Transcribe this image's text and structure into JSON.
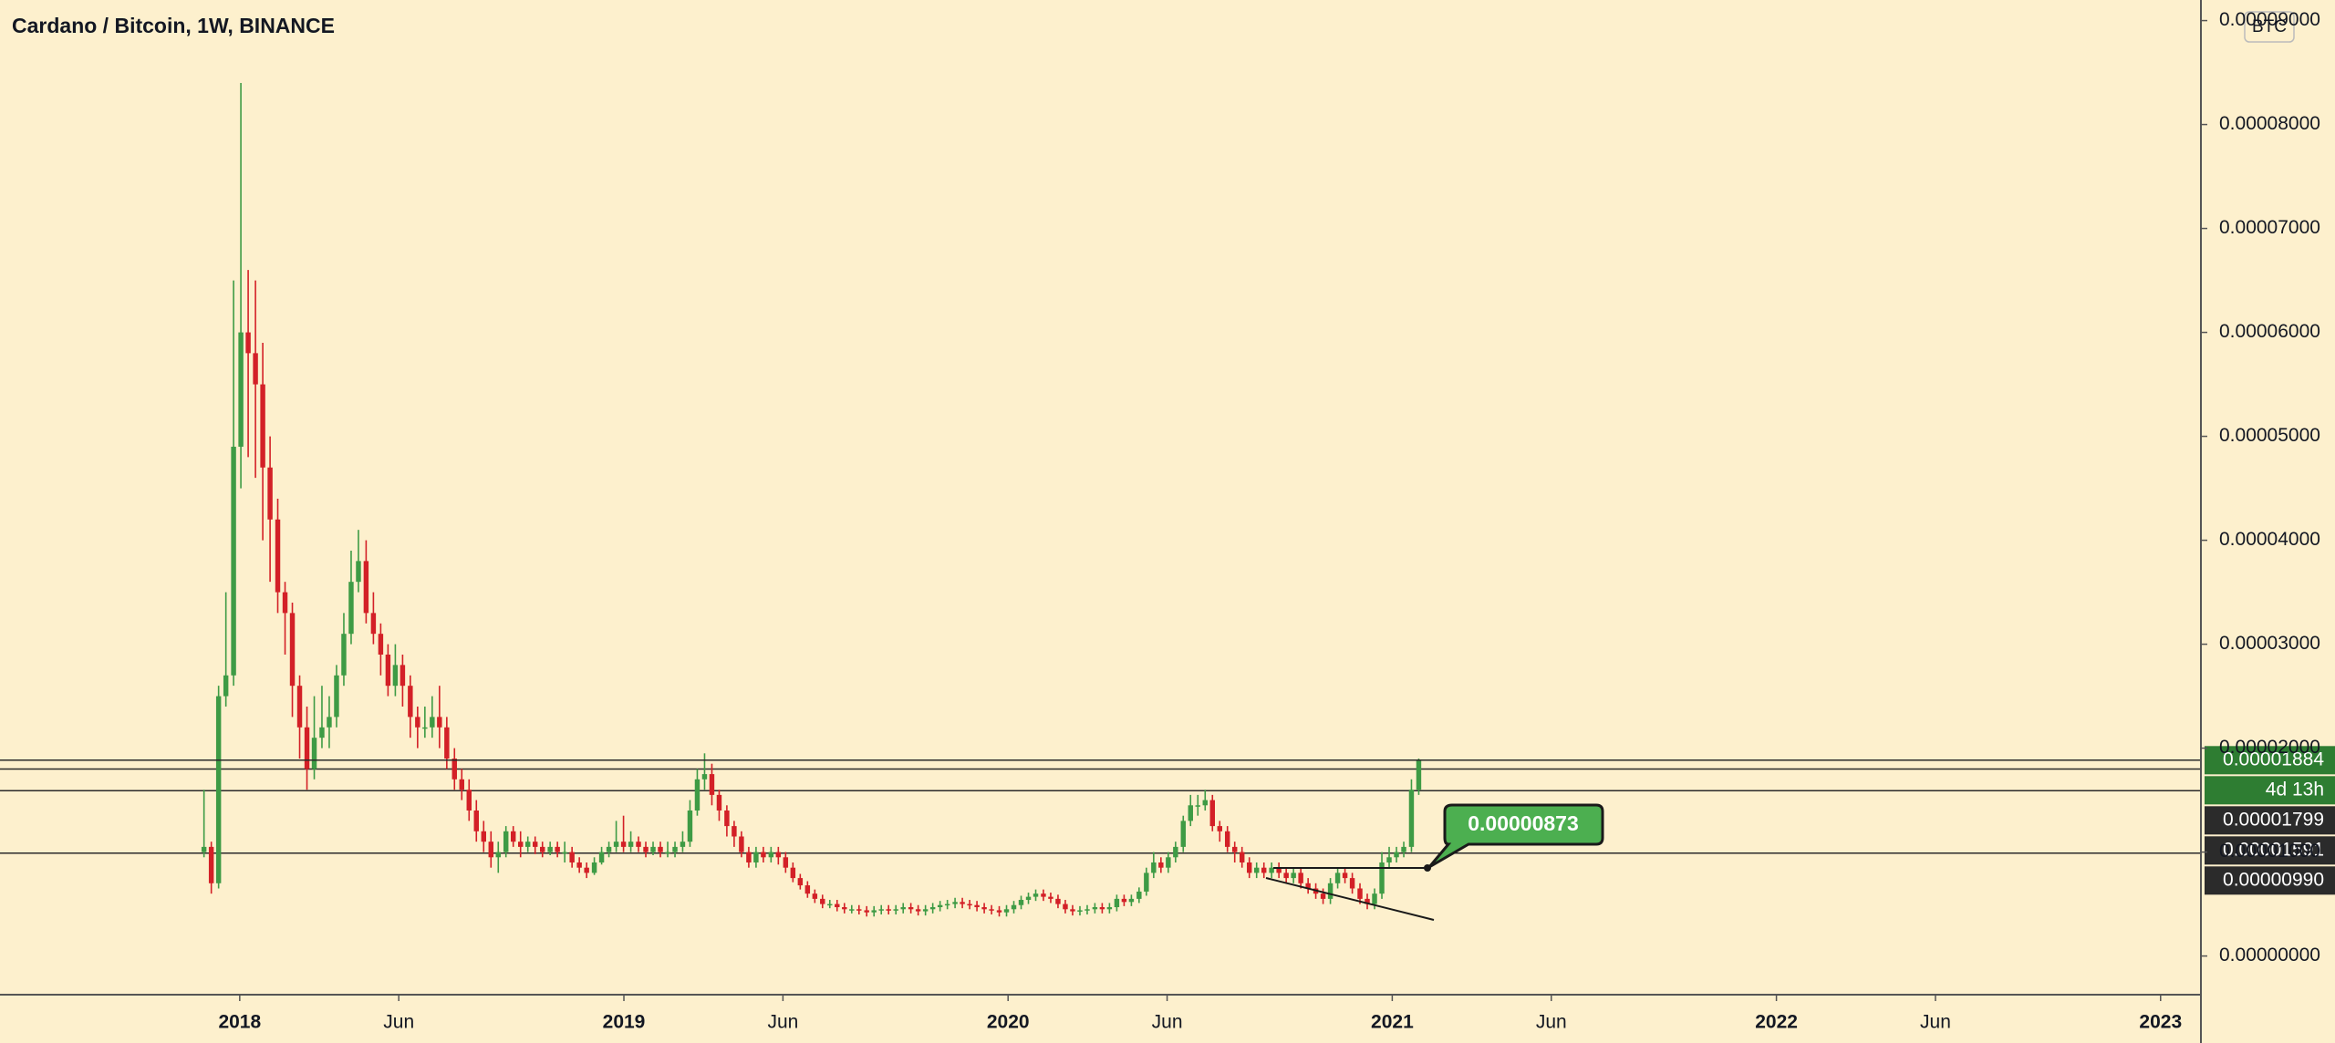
{
  "chart_data": {
    "type": "candlestick",
    "title": "Cardano / Bitcoin, 1W, BINANCE",
    "currency": "BTC",
    "up_color": "#3e9b45",
    "down_color": "#d32027",
    "xlim": [
      2017.376,
      2023.105
    ],
    "ylim": [
      -3.72e-06,
      9.198e-05
    ],
    "xticks": [
      {
        "value": 2018,
        "label": "2018"
      },
      {
        "value": 2018.414,
        "label": "Jun"
      },
      {
        "value": 2019,
        "label": "2019"
      },
      {
        "value": 2019.414,
        "label": "Jun"
      },
      {
        "value": 2020,
        "label": "2020"
      },
      {
        "value": 2020.414,
        "label": "Jun"
      },
      {
        "value": 2021,
        "label": "2021"
      },
      {
        "value": 2021.414,
        "label": "Jun"
      },
      {
        "value": 2022,
        "label": "2022"
      },
      {
        "value": 2022.414,
        "label": "Jun"
      },
      {
        "value": 2023,
        "label": "2023"
      }
    ],
    "yticks": [
      {
        "value": 0,
        "label": "0.00000000"
      },
      {
        "value": 1e-05,
        "label": "0.00001000"
      },
      {
        "value": 2e-05,
        "label": "0.00002000"
      },
      {
        "value": 3e-05,
        "label": "0.00003000"
      },
      {
        "value": 4e-05,
        "label": "0.00004000"
      },
      {
        "value": 5e-05,
        "label": "0.00005000"
      },
      {
        "value": 6e-05,
        "label": "0.00006000"
      },
      {
        "value": 7e-05,
        "label": "0.00007000"
      },
      {
        "value": 8e-05,
        "label": "0.00008000"
      },
      {
        "value": 9e-05,
        "label": "0.00009000"
      }
    ],
    "x": [
      2017.907,
      2017.926,
      2017.945,
      2017.964,
      2017.984,
      2018.003,
      2018.022,
      2018.041,
      2018.06,
      2018.079,
      2018.099,
      2018.118,
      2018.137,
      2018.156,
      2018.175,
      2018.194,
      2018.214,
      2018.233,
      2018.252,
      2018.271,
      2018.29,
      2018.309,
      2018.329,
      2018.348,
      2018.367,
      2018.386,
      2018.405,
      2018.424,
      2018.444,
      2018.463,
      2018.482,
      2018.501,
      2018.52,
      2018.539,
      2018.559,
      2018.578,
      2018.597,
      2018.616,
      2018.635,
      2018.654,
      2018.673,
      2018.693,
      2018.712,
      2018.731,
      2018.75,
      2018.769,
      2018.788,
      2018.808,
      2018.827,
      2018.846,
      2018.865,
      2018.884,
      2018.903,
      2018.923,
      2018.942,
      2018.961,
      2018.98,
      2018.999,
      2019.018,
      2019.038,
      2019.057,
      2019.076,
      2019.095,
      2019.114,
      2019.133,
      2019.153,
      2019.172,
      2019.191,
      2019.21,
      2019.229,
      2019.248,
      2019.268,
      2019.287,
      2019.306,
      2019.325,
      2019.344,
      2019.363,
      2019.383,
      2019.402,
      2019.421,
      2019.44,
      2019.459,
      2019.478,
      2019.497,
      2019.517,
      2019.536,
      2019.555,
      2019.574,
      2019.593,
      2019.612,
      2019.632,
      2019.651,
      2019.67,
      2019.689,
      2019.708,
      2019.727,
      2019.747,
      2019.766,
      2019.785,
      2019.804,
      2019.823,
      2019.842,
      2019.862,
      2019.881,
      2019.9,
      2019.919,
      2019.938,
      2019.957,
      2019.977,
      2019.996,
      2020.015,
      2020.034,
      2020.053,
      2020.072,
      2020.092,
      2020.111,
      2020.13,
      2020.149,
      2020.168,
      2020.187,
      2020.206,
      2020.226,
      2020.245,
      2020.264,
      2020.283,
      2020.302,
      2020.321,
      2020.341,
      2020.36,
      2020.379,
      2020.398,
      2020.417,
      2020.436,
      2020.456,
      2020.475,
      2020.494,
      2020.513,
      2020.532,
      2020.551,
      2020.571,
      2020.59,
      2020.609,
      2020.628,
      2020.647,
      2020.666,
      2020.686,
      2020.705,
      2020.724,
      2020.743,
      2020.762,
      2020.781,
      2020.801,
      2020.82,
      2020.839,
      2020.858,
      2020.877,
      2020.896,
      2020.916,
      2020.935,
      2020.954,
      2020.973,
      2020.992,
      2021.011,
      2021.03,
      2021.05,
      2021.069
    ],
    "open": [
      1e-05,
      1.05e-05,
      7e-06,
      2.5e-05,
      2.7e-05,
      4.9e-05,
      6e-05,
      5.8e-05,
      5.5e-05,
      4.7e-05,
      4.2e-05,
      3.5e-05,
      3.3e-05,
      2.6e-05,
      2.2e-05,
      1.8e-05,
      2.1e-05,
      2.2e-05,
      2.3e-05,
      2.7e-05,
      3.1e-05,
      3.6e-05,
      3.8e-05,
      3.3e-05,
      3.1e-05,
      2.9e-05,
      2.6e-05,
      2.8e-05,
      2.6e-05,
      2.3e-05,
      2.2e-05,
      2.2e-05,
      2.3e-05,
      2.2e-05,
      1.9e-05,
      1.7e-05,
      1.6e-05,
      1.4e-05,
      1.2e-05,
      1.1e-05,
      9.5e-06,
      1e-05,
      1.2e-05,
      1.1e-05,
      1.05e-05,
      1.1e-05,
      1.05e-05,
      1e-05,
      1.05e-05,
      1e-05,
      1e-05,
      9e-06,
      8.5e-06,
      8e-06,
      9e-06,
      1e-05,
      1.05e-05,
      1.1e-05,
      1.05e-05,
      1.1e-05,
      1.05e-05,
      1e-05,
      1.05e-05,
      1e-05,
      1e-05,
      1.05e-05,
      1.1e-05,
      1.4e-05,
      1.7e-05,
      1.75e-05,
      1.55e-05,
      1.4e-05,
      1.25e-05,
      1.15e-05,
      1e-05,
      9e-06,
      1e-05,
      9.5e-06,
      1e-05,
      9.5e-06,
      8.5e-06,
      7.5e-06,
      6.8e-06,
      6e-06,
      5.5e-06,
      5e-06,
      5e-06,
      4.7e-06,
      4.5e-06,
      4.5e-06,
      4.4e-06,
      4.2e-06,
      4.4e-06,
      4.5e-06,
      4.4e-06,
      4.5e-06,
      4.7e-06,
      4.5e-06,
      4.3e-06,
      4.5e-06,
      4.7e-06,
      4.9e-06,
      5e-06,
      5.2e-06,
      5e-06,
      4.9e-06,
      4.7e-06,
      4.5e-06,
      4.4e-06,
      4.2e-06,
      4.5e-06,
      4.9e-06,
      5.4e-06,
      5.7e-06,
      6e-06,
      5.7e-06,
      5.5e-06,
      5e-06,
      4.5e-06,
      4.3e-06,
      4.4e-06,
      4.5e-06,
      4.7e-06,
      4.5e-06,
      4.7e-06,
      5.5e-06,
      5.2e-06,
      5.5e-06,
      6.2e-06,
      8e-06,
      9e-06,
      8.5e-06,
      9.5e-06,
      1.05e-05,
      1.3e-05,
      1.45e-05,
      1.45e-05,
      1.5e-05,
      1.25e-05,
      1.2e-05,
      1.05e-05,
      1e-05,
      9e-06,
      8e-06,
      8.5e-06,
      8e-06,
      8.5e-06,
      8e-06,
      7.5e-06,
      8e-06,
      7e-06,
      6.5e-06,
      6e-06,
      5.5e-06,
      7e-06,
      8e-06,
      7.5e-06,
      6.5e-06,
      5.5e-06,
      5e-06,
      6e-06,
      9e-06,
      9.5e-06,
      1e-05,
      1.05e-05,
      1.6e-05
    ],
    "high": [
      1.6e-05,
      1.1e-05,
      2.6e-05,
      3.5e-05,
      6.5e-05,
      8.4e-05,
      6.6e-05,
      6.5e-05,
      5.9e-05,
      5e-05,
      4.4e-05,
      3.6e-05,
      3.4e-05,
      2.7e-05,
      2.4e-05,
      2.5e-05,
      2.6e-05,
      2.5e-05,
      2.8e-05,
      3.3e-05,
      3.9e-05,
      4.1e-05,
      4e-05,
      3.5e-05,
      3.2e-05,
      3e-05,
      3e-05,
      2.9e-05,
      2.7e-05,
      2.4e-05,
      2.4e-05,
      2.5e-05,
      2.6e-05,
      2.3e-05,
      2e-05,
      1.8e-05,
      1.7e-05,
      1.5e-05,
      1.3e-05,
      1.2e-05,
      1.1e-05,
      1.25e-05,
      1.25e-05,
      1.2e-05,
      1.15e-05,
      1.15e-05,
      1.1e-05,
      1.1e-05,
      1.1e-05,
      1.1e-05,
      1.05e-05,
      9.5e-06,
      9e-06,
      9.5e-06,
      1.05e-05,
      1.1e-05,
      1.3e-05,
      1.35e-05,
      1.2e-05,
      1.15e-05,
      1.1e-05,
      1.1e-05,
      1.1e-05,
      1.1e-05,
      1.1e-05,
      1.2e-05,
      1.5e-05,
      1.8e-05,
      1.95e-05,
      1.85e-05,
      1.6e-05,
      1.45e-05,
      1.3e-05,
      1.2e-05,
      1.05e-05,
      1.05e-05,
      1.05e-05,
      1.05e-05,
      1.05e-05,
      1e-05,
      9e-06,
      7.9e-06,
      7.2e-06,
      6.4e-06,
      5.9e-06,
      5.4e-06,
      5.4e-06,
      5.1e-06,
      4.9e-06,
      4.9e-06,
      4.8e-06,
      4.8e-06,
      4.9e-06,
      4.9e-06,
      4.9e-06,
      5.1e-06,
      5.1e-06,
      4.9e-06,
      4.9e-06,
      5.1e-06,
      5.3e-06,
      5.4e-06,
      5.6e-06,
      5.6e-06,
      5.4e-06,
      5.3e-06,
      5.1e-06,
      4.9e-06,
      4.8e-06,
      4.9e-06,
      5.3e-06,
      5.8e-06,
      6.1e-06,
      6.4e-06,
      6.4e-06,
      6.1e-06,
      5.9e-06,
      5.4e-06,
      4.9e-06,
      4.8e-06,
      4.9e-06,
      5.1e-06,
      5.1e-06,
      5.1e-06,
      5.9e-06,
      5.9e-06,
      5.9e-06,
      6.6e-06,
      8.5e-06,
      1e-05,
      9.5e-06,
      1e-05,
      1.1e-05,
      1.35e-05,
      1.55e-05,
      1.55e-05,
      1.6e-05,
      1.55e-05,
      1.3e-05,
      1.25e-05,
      1.1e-05,
      1.05e-05,
      9.5e-06,
      9e-06,
      9e-06,
      9e-06,
      9e-06,
      8.5e-06,
      8.5e-06,
      8.5e-06,
      7.5e-06,
      7e-06,
      6.5e-06,
      7.5e-06,
      8.5e-06,
      8.5e-06,
      8e-06,
      7e-06,
      6e-06,
      6.5e-06,
      1e-05,
      1.05e-05,
      1.05e-05,
      1.1e-05,
      1.7e-05,
      1.9e-05
    ],
    "low": [
      9.5e-06,
      6e-06,
      6.5e-06,
      2.4e-05,
      2.6e-05,
      4.5e-05,
      4.8e-05,
      4.6e-05,
      4e-05,
      3.6e-05,
      3.3e-05,
      2.9e-05,
      2.3e-05,
      1.9e-05,
      1.6e-05,
      1.7e-05,
      2e-05,
      2e-05,
      2.2e-05,
      2.6e-05,
      3e-05,
      3.5e-05,
      3.2e-05,
      3e-05,
      2.7e-05,
      2.5e-05,
      2.5e-05,
      2.4e-05,
      2.1e-05,
      2e-05,
      2.1e-05,
      2.1e-05,
      2e-05,
      1.8e-05,
      1.6e-05,
      1.5e-05,
      1.3e-05,
      1.1e-05,
      1e-05,
      8.5e-06,
      8e-06,
      9.5e-06,
      1.05e-05,
      9.5e-06,
      1e-05,
      9.8e-06,
      9.5e-06,
      9.7e-06,
      9.5e-06,
      9e-06,
      8.5e-06,
      8e-06,
      7.5e-06,
      7.8e-06,
      8.8e-06,
      9.5e-06,
      1e-05,
      1e-05,
      1e-05,
      1e-05,
      9.5e-06,
      9.7e-06,
      9.5e-06,
      9.5e-06,
      9.5e-06,
      1e-05,
      1.05e-05,
      1.35e-05,
      1.6e-05,
      1.45e-05,
      1.3e-05,
      1.15e-05,
      1.05e-05,
      9.5e-06,
      8.5e-06,
      8.5e-06,
      9e-06,
      9e-06,
      8.8e-06,
      8e-06,
      7.1e-06,
      6.4e-06,
      5.6e-06,
      5.1e-06,
      4.6e-06,
      4.6e-06,
      4.3e-06,
      4.1e-06,
      4.1e-06,
      4e-06,
      3.8e-06,
      3.8e-06,
      4e-06,
      4e-06,
      4e-06,
      4.1e-06,
      4.1e-06,
      3.9e-06,
      3.9e-06,
      4.1e-06,
      4.3e-06,
      4.5e-06,
      4.6e-06,
      4.6e-06,
      4.5e-06,
      4.3e-06,
      4.1e-06,
      4e-06,
      3.8e-06,
      3.8e-06,
      4.1e-06,
      4.5e-06,
      5e-06,
      5.3e-06,
      5.3e-06,
      5.1e-06,
      4.6e-06,
      4.1e-06,
      3.9e-06,
      3.9e-06,
      4e-06,
      4.1e-06,
      4.1e-06,
      4.1e-06,
      4.3e-06,
      4.8e-06,
      4.8e-06,
      5.1e-06,
      5.8e-06,
      7.5e-06,
      8e-06,
      8e-06,
      9e-06,
      1e-05,
      1.25e-05,
      1.35e-05,
      1.4e-05,
      1.2e-05,
      1.1e-05,
      1e-05,
      9e-06,
      8.5e-06,
      7.5e-06,
      7.5e-06,
      7.5e-06,
      7.5e-06,
      7.5e-06,
      7e-06,
      7e-06,
      6.5e-06,
      6e-06,
      5.5e-06,
      5e-06,
      5e-06,
      6.5e-06,
      7e-06,
      6e-06,
      5e-06,
      4.5e-06,
      4.5e-06,
      5.5e-06,
      8.5e-06,
      9e-06,
      9.5e-06,
      1e-05,
      1.55e-05
    ],
    "close": [
      1.05e-05,
      7e-06,
      2.5e-05,
      2.7e-05,
      4.9e-05,
      6e-05,
      5.8e-05,
      5.5e-05,
      4.7e-05,
      4.2e-05,
      3.5e-05,
      3.3e-05,
      2.6e-05,
      2.2e-05,
      1.8e-05,
      2.1e-05,
      2.2e-05,
      2.3e-05,
      2.7e-05,
      3.1e-05,
      3.6e-05,
      3.8e-05,
      3.3e-05,
      3.1e-05,
      2.9e-05,
      2.6e-05,
      2.8e-05,
      2.6e-05,
      2.3e-05,
      2.2e-05,
      2.2e-05,
      2.3e-05,
      2.2e-05,
      1.9e-05,
      1.7e-05,
      1.6e-05,
      1.4e-05,
      1.2e-05,
      1.1e-05,
      9.5e-06,
      1e-05,
      1.2e-05,
      1.1e-05,
      1.05e-05,
      1.1e-05,
      1.05e-05,
      1e-05,
      1.05e-05,
      1e-05,
      1e-05,
      9e-06,
      8.5e-06,
      8e-06,
      9e-06,
      1e-05,
      1.05e-05,
      1.1e-05,
      1.05e-05,
      1.1e-05,
      1.05e-05,
      1e-05,
      1.05e-05,
      1e-05,
      1e-05,
      1.05e-05,
      1.1e-05,
      1.4e-05,
      1.7e-05,
      1.75e-05,
      1.55e-05,
      1.4e-05,
      1.25e-05,
      1.15e-05,
      1e-05,
      9e-06,
      1e-05,
      9.5e-06,
      1e-05,
      9.5e-06,
      8.5e-06,
      7.5e-06,
      6.8e-06,
      6e-06,
      5.5e-06,
      5e-06,
      5e-06,
      4.7e-06,
      4.5e-06,
      4.5e-06,
      4.4e-06,
      4.2e-06,
      4.4e-06,
      4.5e-06,
      4.4e-06,
      4.5e-06,
      4.7e-06,
      4.5e-06,
      4.3e-06,
      4.5e-06,
      4.7e-06,
      4.9e-06,
      5e-06,
      5.2e-06,
      5e-06,
      4.9e-06,
      4.7e-06,
      4.5e-06,
      4.4e-06,
      4.2e-06,
      4.5e-06,
      4.9e-06,
      5.4e-06,
      5.7e-06,
      6e-06,
      5.7e-06,
      5.5e-06,
      5e-06,
      4.5e-06,
      4.3e-06,
      4.4e-06,
      4.5e-06,
      4.7e-06,
      4.5e-06,
      4.7e-06,
      5.5e-06,
      5.2e-06,
      5.5e-06,
      6.2e-06,
      8e-06,
      9e-06,
      8.5e-06,
      9.5e-06,
      1.05e-05,
      1.3e-05,
      1.45e-05,
      1.45e-05,
      1.5e-05,
      1.25e-05,
      1.2e-05,
      1.05e-05,
      1e-05,
      9e-06,
      8e-06,
      8.5e-06,
      8e-06,
      8.5e-06,
      8e-06,
      7.5e-06,
      8e-06,
      7e-06,
      6.5e-06,
      6e-06,
      5.5e-06,
      7e-06,
      8e-06,
      7.5e-06,
      6.5e-06,
      5.5e-06,
      5e-06,
      6e-06,
      9e-06,
      9.5e-06,
      1e-05,
      1.05e-05,
      1.6e-05,
      1.884e-05
    ],
    "last_price": 1.884e-05,
    "countdown": "4d 13h",
    "price_lines": [
      {
        "value": 1.799e-05,
        "label": "0.00001799"
      },
      {
        "value": 1.591e-05,
        "label": "0.00001591"
      },
      {
        "value": 9.9e-06,
        "label": "0.00000990"
      }
    ],
    "annotation": "0.00000873"
  }
}
